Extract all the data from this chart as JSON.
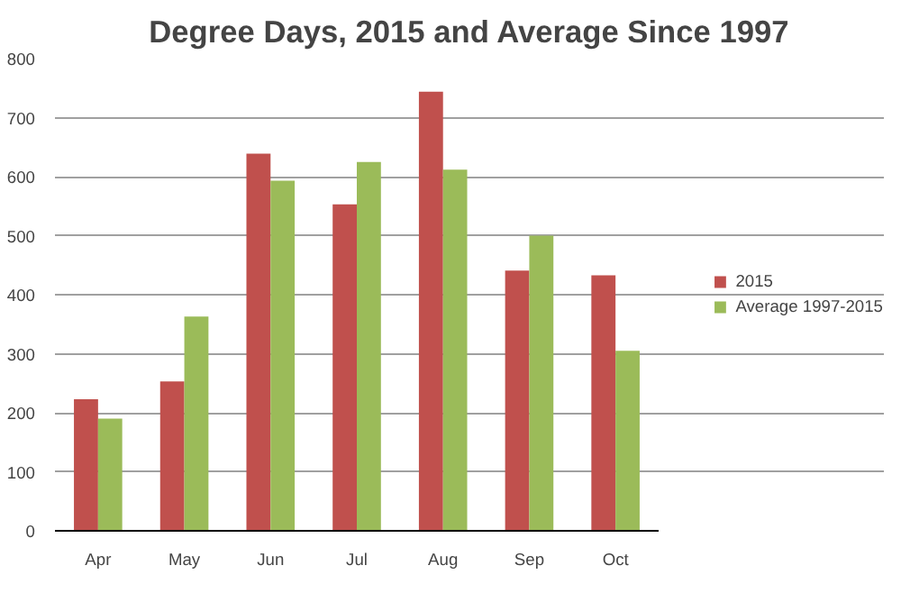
{
  "chart_data": {
    "type": "bar",
    "title": "Degree Days, 2015 and Average Since 1997",
    "categories": [
      "Apr",
      "May",
      "Jun",
      "Jul",
      "Aug",
      "Sep",
      "Oct"
    ],
    "series": [
      {
        "name": "2015",
        "color": "#c0504d",
        "values": [
          223,
          253,
          639,
          553,
          744,
          441,
          433
        ]
      },
      {
        "name": "Average 1997-2015",
        "color": "#9bbb59",
        "values": [
          190,
          363,
          593,
          625,
          612,
          500,
          305
        ]
      }
    ],
    "ylim": [
      0,
      800
    ],
    "yticks": [
      0,
      100,
      200,
      300,
      400,
      500,
      600,
      700,
      800
    ],
    "grid": "y",
    "legend": "right"
  }
}
